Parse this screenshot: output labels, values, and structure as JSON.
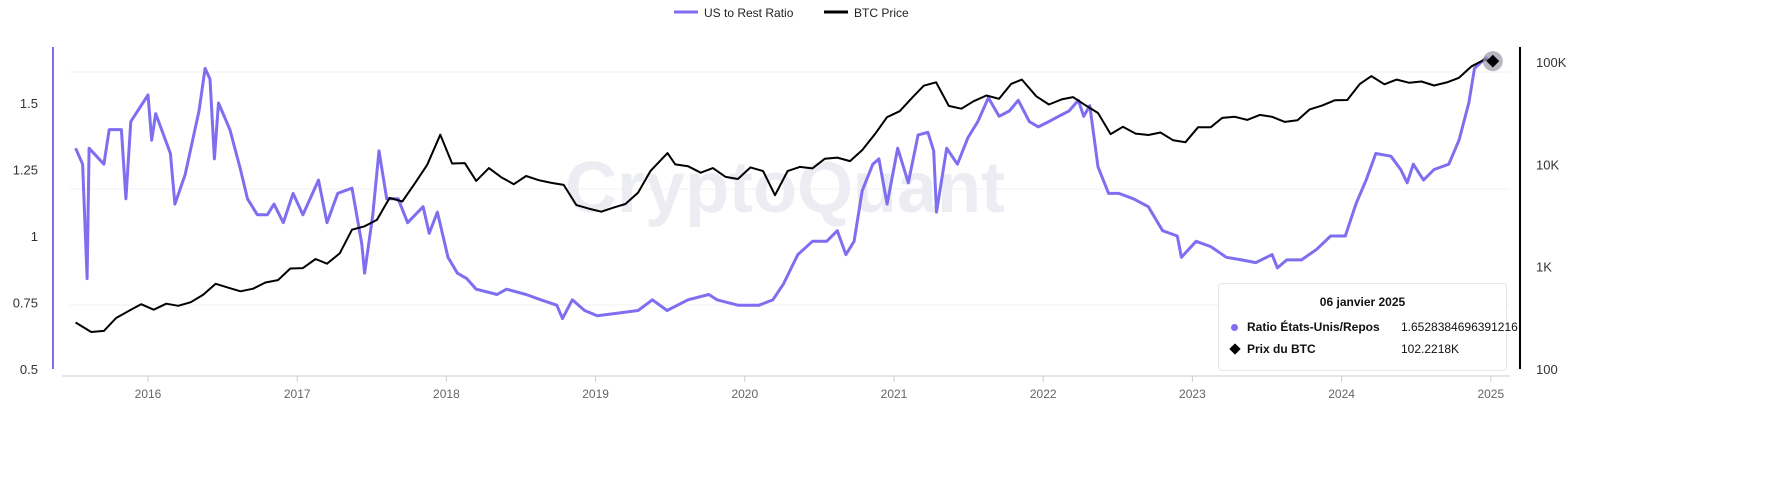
{
  "chart_data": {
    "type": "line",
    "title": "",
    "watermark": "CryptoQuant",
    "legend_placement": "top-center",
    "grid": true,
    "x_ticks": [
      "2016",
      "2017",
      "2018",
      "2019",
      "2020",
      "2021",
      "2022",
      "2023",
      "2024",
      "2025"
    ],
    "xlim": [
      "2015-06-15",
      "2025-02-10"
    ],
    "y_left": {
      "ticks": [
        "0.5",
        "0.75",
        "1",
        "1.25",
        "1.5"
      ],
      "ylim": [
        0.5,
        1.68
      ],
      "scale": "linear",
      "color": "#7f6ff0"
    },
    "y_right": {
      "ticks": [
        "100",
        "1K",
        "10K",
        "100K"
      ],
      "ylim": [
        100,
        150000
      ],
      "scale": "log",
      "color": "#000000"
    },
    "series": [
      {
        "name": "US to Rest Ratio",
        "axis": "left",
        "color": "#7f6ff0",
        "points": [
          [
            "2015-07-08",
            1.33
          ],
          [
            "2015-07-25",
            1.27
          ],
          [
            "2015-08-05",
            0.84
          ],
          [
            "2015-08-10",
            1.33
          ],
          [
            "2015-09-15",
            1.27
          ],
          [
            "2015-09-28",
            1.4
          ],
          [
            "2015-10-28",
            1.4
          ],
          [
            "2015-11-08",
            1.14
          ],
          [
            "2015-11-20",
            1.43
          ],
          [
            "2016-01-01",
            1.53
          ],
          [
            "2016-01-10",
            1.36
          ],
          [
            "2016-01-20",
            1.46
          ],
          [
            "2016-02-25",
            1.31
          ],
          [
            "2016-03-07",
            1.12
          ],
          [
            "2016-04-01",
            1.23
          ],
          [
            "2016-05-05",
            1.47
          ],
          [
            "2016-05-20",
            1.63
          ],
          [
            "2016-06-01",
            1.59
          ],
          [
            "2016-06-12",
            1.29
          ],
          [
            "2016-06-22",
            1.5
          ],
          [
            "2016-07-20",
            1.4
          ],
          [
            "2016-08-15",
            1.25
          ],
          [
            "2016-09-01",
            1.14
          ],
          [
            "2016-09-25",
            1.08
          ],
          [
            "2016-10-20",
            1.08
          ],
          [
            "2016-11-05",
            1.12
          ],
          [
            "2016-11-28",
            1.05
          ],
          [
            "2016-12-22",
            1.16
          ],
          [
            "2017-01-15",
            1.08
          ],
          [
            "2017-02-22",
            1.21
          ],
          [
            "2017-03-15",
            1.05
          ],
          [
            "2017-04-10",
            1.16
          ],
          [
            "2017-05-15",
            1.18
          ],
          [
            "2017-06-08",
            0.97
          ],
          [
            "2017-06-15",
            0.86
          ],
          [
            "2017-07-05",
            1.08
          ],
          [
            "2017-07-20",
            1.32
          ],
          [
            "2017-08-08",
            1.14
          ],
          [
            "2017-09-05",
            1.14
          ],
          [
            "2017-09-28",
            1.05
          ],
          [
            "2017-11-05",
            1.11
          ],
          [
            "2017-11-20",
            1.01
          ],
          [
            "2017-12-10",
            1.09
          ],
          [
            "2018-01-05",
            0.92
          ],
          [
            "2018-01-28",
            0.86
          ],
          [
            "2018-02-20",
            0.84
          ],
          [
            "2018-03-15",
            0.8
          ],
          [
            "2018-05-05",
            0.78
          ],
          [
            "2018-05-28",
            0.8
          ],
          [
            "2018-07-15",
            0.78
          ],
          [
            "2018-08-20",
            0.76
          ],
          [
            "2018-09-28",
            0.74
          ],
          [
            "2018-10-12",
            0.69
          ],
          [
            "2018-11-05",
            0.76
          ],
          [
            "2018-12-05",
            0.72
          ],
          [
            "2019-01-05",
            0.7
          ],
          [
            "2019-02-25",
            0.71
          ],
          [
            "2019-04-15",
            0.72
          ],
          [
            "2019-05-20",
            0.76
          ],
          [
            "2019-06-25",
            0.72
          ],
          [
            "2019-08-15",
            0.76
          ],
          [
            "2019-10-05",
            0.78
          ],
          [
            "2019-10-25",
            0.76
          ],
          [
            "2019-12-15",
            0.74
          ],
          [
            "2020-02-05",
            0.74
          ],
          [
            "2020-03-10",
            0.76
          ],
          [
            "2020-04-05",
            0.82
          ],
          [
            "2020-05-10",
            0.93
          ],
          [
            "2020-06-15",
            0.98
          ],
          [
            "2020-07-20",
            0.98
          ],
          [
            "2020-08-15",
            1.02
          ],
          [
            "2020-09-05",
            0.93
          ],
          [
            "2020-09-25",
            0.98
          ],
          [
            "2020-10-15",
            1.17
          ],
          [
            "2020-11-10",
            1.27
          ],
          [
            "2020-11-25",
            1.29
          ],
          [
            "2020-12-15",
            1.12
          ],
          [
            "2021-01-10",
            1.33
          ],
          [
            "2021-02-05",
            1.2
          ],
          [
            "2021-03-01",
            1.38
          ],
          [
            "2021-03-25",
            1.39
          ],
          [
            "2021-04-08",
            1.32
          ],
          [
            "2021-04-15",
            1.09
          ],
          [
            "2021-05-10",
            1.33
          ],
          [
            "2021-06-05",
            1.27
          ],
          [
            "2021-07-01",
            1.37
          ],
          [
            "2021-07-25",
            1.43
          ],
          [
            "2021-08-20",
            1.52
          ],
          [
            "2021-09-15",
            1.45
          ],
          [
            "2021-10-10",
            1.47
          ],
          [
            "2021-11-01",
            1.51
          ],
          [
            "2021-11-28",
            1.43
          ],
          [
            "2021-12-20",
            1.41
          ],
          [
            "2022-01-15",
            1.43
          ],
          [
            "2022-02-08",
            1.45
          ],
          [
            "2022-03-05",
            1.47
          ],
          [
            "2022-03-28",
            1.51
          ],
          [
            "2022-04-10",
            1.45
          ],
          [
            "2022-04-25",
            1.49
          ],
          [
            "2022-05-15",
            1.26
          ],
          [
            "2022-06-10",
            1.16
          ],
          [
            "2022-07-05",
            1.16
          ],
          [
            "2022-08-10",
            1.14
          ],
          [
            "2022-09-15",
            1.11
          ],
          [
            "2022-10-20",
            1.02
          ],
          [
            "2022-11-25",
            1.0
          ],
          [
            "2022-12-05",
            0.92
          ],
          [
            "2023-01-10",
            0.98
          ],
          [
            "2023-02-15",
            0.96
          ],
          [
            "2023-03-25",
            0.92
          ],
          [
            "2023-05-01",
            0.91
          ],
          [
            "2023-06-05",
            0.9
          ],
          [
            "2023-07-15",
            0.93
          ],
          [
            "2023-07-28",
            0.88
          ],
          [
            "2023-08-20",
            0.91
          ],
          [
            "2023-09-25",
            0.91
          ],
          [
            "2023-11-01",
            0.95
          ],
          [
            "2023-12-05",
            1.0
          ],
          [
            "2024-01-10",
            1.0
          ],
          [
            "2024-02-05",
            1.12
          ],
          [
            "2024-03-01",
            1.21
          ],
          [
            "2024-03-25",
            1.31
          ],
          [
            "2024-05-01",
            1.3
          ],
          [
            "2024-05-25",
            1.25
          ],
          [
            "2024-06-10",
            1.2
          ],
          [
            "2024-06-25",
            1.27
          ],
          [
            "2024-07-20",
            1.21
          ],
          [
            "2024-08-15",
            1.25
          ],
          [
            "2024-09-20",
            1.27
          ],
          [
            "2024-10-15",
            1.36
          ],
          [
            "2024-11-08",
            1.5
          ],
          [
            "2024-11-22",
            1.63
          ],
          [
            "2024-12-20",
            1.67
          ],
          [
            "2025-01-06",
            1.6528
          ]
        ]
      },
      {
        "name": "BTC Price",
        "axis": "right",
        "color": "#000000",
        "points": [
          [
            "2015-07-08",
            285
          ],
          [
            "2015-08-15",
            230
          ],
          [
            "2015-09-15",
            236
          ],
          [
            "2015-10-15",
            315
          ],
          [
            "2015-11-15",
            370
          ],
          [
            "2015-12-15",
            430
          ],
          [
            "2016-01-15",
            380
          ],
          [
            "2016-02-15",
            435
          ],
          [
            "2016-03-15",
            415
          ],
          [
            "2016-04-15",
            450
          ],
          [
            "2016-05-15",
            530
          ],
          [
            "2016-06-15",
            680
          ],
          [
            "2016-07-15",
            625
          ],
          [
            "2016-08-15",
            575
          ],
          [
            "2016-09-15",
            610
          ],
          [
            "2016-10-15",
            700
          ],
          [
            "2016-11-15",
            740
          ],
          [
            "2016-12-15",
            960
          ],
          [
            "2017-01-15",
            970
          ],
          [
            "2017-02-15",
            1190
          ],
          [
            "2017-03-15",
            1070
          ],
          [
            "2017-04-15",
            1350
          ],
          [
            "2017-05-15",
            2300
          ],
          [
            "2017-06-15",
            2480
          ],
          [
            "2017-07-15",
            2870
          ],
          [
            "2017-08-15",
            4700
          ],
          [
            "2017-09-15",
            4340
          ],
          [
            "2017-10-15",
            6450
          ],
          [
            "2017-11-15",
            9900
          ],
          [
            "2017-12-17",
            19500
          ],
          [
            "2018-01-15",
            10200
          ],
          [
            "2018-02-15",
            10300
          ],
          [
            "2018-03-15",
            6900
          ],
          [
            "2018-04-15",
            9200
          ],
          [
            "2018-05-15",
            7500
          ],
          [
            "2018-06-15",
            6400
          ],
          [
            "2018-07-15",
            7700
          ],
          [
            "2018-08-15",
            7000
          ],
          [
            "2018-09-15",
            6600
          ],
          [
            "2018-10-15",
            6300
          ],
          [
            "2018-11-15",
            4000
          ],
          [
            "2018-12-15",
            3700
          ],
          [
            "2019-01-15",
            3450
          ],
          [
            "2019-02-15",
            3800
          ],
          [
            "2019-03-15",
            4100
          ],
          [
            "2019-04-15",
            5300
          ],
          [
            "2019-05-15",
            8600
          ],
          [
            "2019-06-26",
            12900
          ],
          [
            "2019-07-15",
            10000
          ],
          [
            "2019-08-15",
            9600
          ],
          [
            "2019-09-15",
            8300
          ],
          [
            "2019-10-15",
            9200
          ],
          [
            "2019-11-15",
            7550
          ],
          [
            "2019-12-15",
            7200
          ],
          [
            "2020-01-15",
            9350
          ],
          [
            "2020-02-15",
            8600
          ],
          [
            "2020-03-15",
            5000
          ],
          [
            "2020-04-15",
            8600
          ],
          [
            "2020-05-15",
            9450
          ],
          [
            "2020-06-15",
            9140
          ],
          [
            "2020-07-15",
            11350
          ],
          [
            "2020-08-15",
            11650
          ],
          [
            "2020-09-15",
            10780
          ],
          [
            "2020-10-15",
            13800
          ],
          [
            "2020-11-15",
            19700
          ],
          [
            "2020-12-15",
            29000
          ],
          [
            "2021-01-15",
            33100
          ],
          [
            "2021-02-15",
            45200
          ],
          [
            "2021-03-15",
            58800
          ],
          [
            "2021-04-14",
            63500
          ],
          [
            "2021-05-15",
            37300
          ],
          [
            "2021-06-15",
            35000
          ],
          [
            "2021-07-15",
            41500
          ],
          [
            "2021-08-15",
            47100
          ],
          [
            "2021-09-15",
            43800
          ],
          [
            "2021-10-15",
            61300
          ],
          [
            "2021-11-10",
            67500
          ],
          [
            "2021-12-15",
            46300
          ],
          [
            "2022-01-15",
            38500
          ],
          [
            "2022-02-15",
            43200
          ],
          [
            "2022-03-15",
            45500
          ],
          [
            "2022-04-15",
            37700
          ],
          [
            "2022-05-15",
            31800
          ],
          [
            "2022-06-15",
            19800
          ],
          [
            "2022-07-15",
            23300
          ],
          [
            "2022-08-15",
            20000
          ],
          [
            "2022-09-15",
            19400
          ],
          [
            "2022-10-15",
            20500
          ],
          [
            "2022-11-15",
            17200
          ],
          [
            "2022-12-15",
            16500
          ],
          [
            "2023-01-15",
            23100
          ],
          [
            "2023-02-15",
            23100
          ],
          [
            "2023-03-15",
            28500
          ],
          [
            "2023-04-15",
            29200
          ],
          [
            "2023-05-15",
            27200
          ],
          [
            "2023-06-15",
            30500
          ],
          [
            "2023-07-15",
            29200
          ],
          [
            "2023-08-15",
            26000
          ],
          [
            "2023-09-15",
            27000
          ],
          [
            "2023-10-15",
            34500
          ],
          [
            "2023-11-15",
            37700
          ],
          [
            "2023-12-15",
            42300
          ],
          [
            "2024-01-15",
            42600
          ],
          [
            "2024-02-15",
            61200
          ],
          [
            "2024-03-14",
            73000
          ],
          [
            "2024-04-15",
            60700
          ],
          [
            "2024-05-15",
            67500
          ],
          [
            "2024-06-15",
            62700
          ],
          [
            "2024-07-15",
            64600
          ],
          [
            "2024-08-15",
            59000
          ],
          [
            "2024-09-15",
            63300
          ],
          [
            "2024-10-15",
            70200
          ],
          [
            "2024-11-15",
            91000
          ],
          [
            "2024-12-17",
            106000
          ],
          [
            "2025-01-06",
            102221.8
          ]
        ]
      }
    ]
  },
  "tooltip": {
    "date": "06 janvier 2025",
    "rows": [
      {
        "label": "Ratio États-Unis/Repos",
        "value": "1.6528384696391216",
        "color": "#7f6ff0",
        "marker": "circle"
      },
      {
        "label": "Prix du BTC",
        "value": "102.2218K",
        "color": "#000000",
        "marker": "diamond"
      }
    ]
  }
}
